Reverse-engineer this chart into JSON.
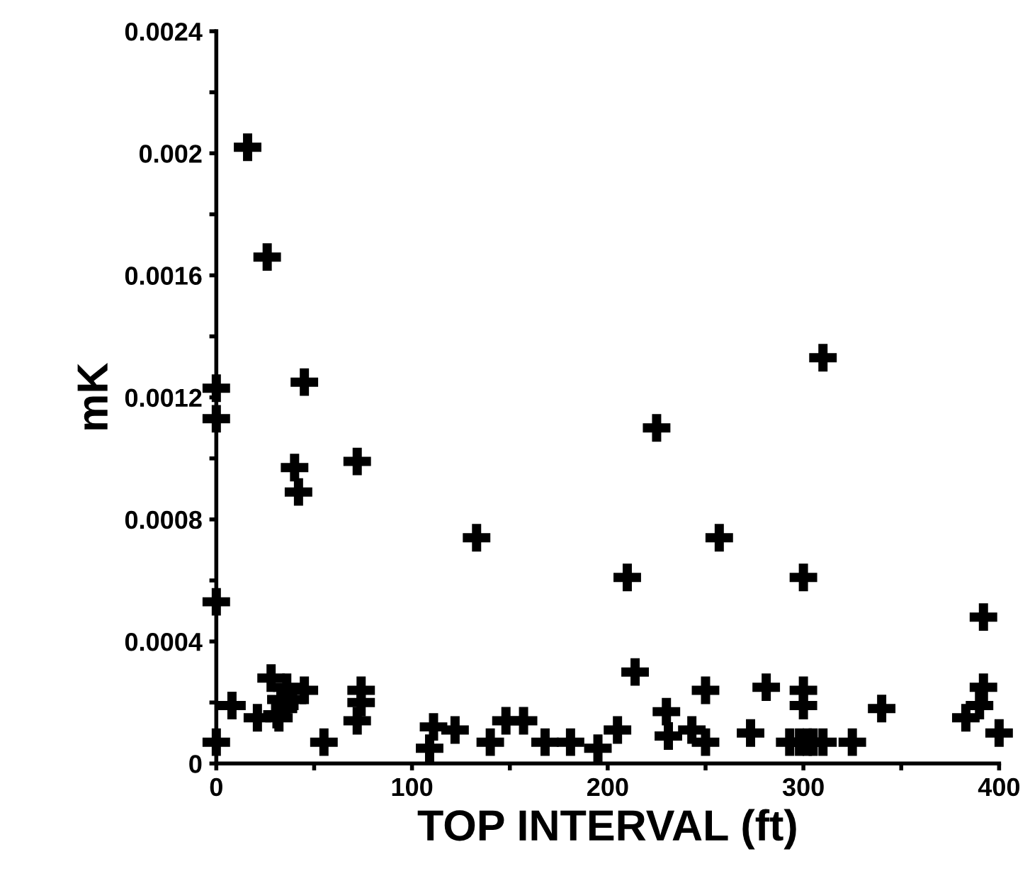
{
  "chart_data": {
    "type": "scatter",
    "xlabel": "TOP INTERVAL (ft)",
    "ylabel": "mK",
    "marker": "cross",
    "grid": false,
    "legend": false,
    "xlim": [
      0,
      400
    ],
    "ylim": [
      0,
      0.0024
    ],
    "xticks": [
      0,
      {
        "value": 50,
        "label": null
      },
      100,
      {
        "value": 150,
        "label": null
      },
      200,
      {
        "value": 250,
        "label": null
      },
      300,
      {
        "value": 350,
        "label": null
      },
      400
    ],
    "yticks": [
      0,
      {
        "value": 0.0002,
        "label": null
      },
      0.0004,
      {
        "value": 0.0006,
        "label": null
      },
      0.0008,
      {
        "value": 0.001,
        "label": null
      },
      0.0012,
      {
        "value": 0.0014,
        "label": null
      },
      0.0016,
      {
        "value": 0.0018,
        "label": null
      },
      0.002,
      {
        "value": 0.0022,
        "label": null
      },
      0.0024
    ],
    "series": [
      {
        "color": "#000000",
        "x": [
          16,
          26,
          0,
          0,
          45,
          40,
          42,
          72,
          133,
          225,
          310,
          257,
          210,
          300,
          392,
          214,
          0,
          0,
          8,
          28,
          21,
          31,
          33,
          36,
          39,
          45,
          35,
          32,
          55,
          74,
          74,
          72,
          109,
          111,
          122,
          140,
          148,
          157,
          168,
          181,
          195,
          205,
          230,
          231,
          243,
          250,
          250,
          273,
          281,
          300,
          300,
          293,
          298,
          302,
          305,
          310,
          325,
          340,
          383,
          390,
          392,
          400
        ],
        "values": [
          0.00202,
          0.00166,
          0.00123,
          0.00113,
          0.00125,
          0.00097,
          0.00089,
          0.00099,
          0.00074,
          0.0011,
          0.00133,
          0.00074,
          0.00061,
          0.00061,
          0.00048,
          0.0003,
          0.00053,
          7e-05,
          0.00019,
          0.00028,
          0.00015,
          0.00016,
          0.00021,
          0.00025,
          0.00021,
          0.00024,
          0.00019,
          0.00015,
          7e-05,
          0.00024,
          0.0002,
          0.00014,
          5e-05,
          0.00012,
          0.00011,
          7e-05,
          0.00014,
          0.00014,
          7e-05,
          7e-05,
          5e-05,
          0.00011,
          0.00017,
          9e-05,
          0.00011,
          7e-05,
          0.00024,
          0.0001,
          0.00025,
          0.00024,
          0.00019,
          7e-05,
          7e-05,
          7e-05,
          7e-05,
          7e-05,
          7e-05,
          0.00018,
          0.00015,
          0.00019,
          0.00025,
          0.0001
        ]
      }
    ]
  }
}
